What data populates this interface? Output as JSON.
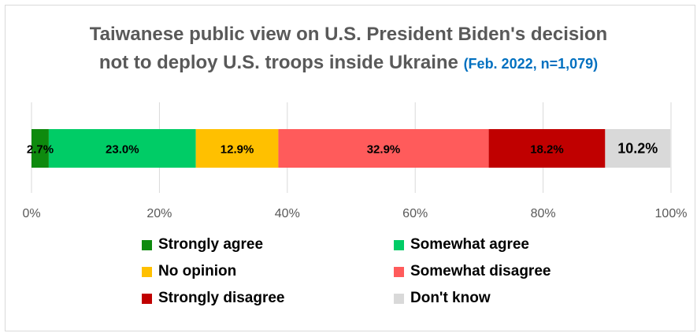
{
  "title": {
    "line1": "Taiwanese public view on U.S. President Biden's decision",
    "line2": "not to deploy U.S. troops inside Ukraine",
    "subtitle": "(Feb. 2022, n=1,079)",
    "color": "#595959",
    "subtitle_color": "#0070C0"
  },
  "chart_data": {
    "type": "bar",
    "orientation": "horizontal",
    "stacked": true,
    "categories": [
      ""
    ],
    "series": [
      {
        "name": "Strongly agree",
        "values": [
          2.7
        ],
        "label": "2.7%",
        "color": "#0E8A0E"
      },
      {
        "name": "Somewhat agree",
        "values": [
          23.0
        ],
        "label": "23.0%",
        "color": "#00CC66"
      },
      {
        "name": "No opinion",
        "values": [
          12.9
        ],
        "label": "12.9%",
        "color": "#FFC000"
      },
      {
        "name": "Somewhat disagree",
        "values": [
          32.9
        ],
        "label": "32.9%",
        "color": "#FF5B5B"
      },
      {
        "name": "Strongly disagree",
        "values": [
          18.2
        ],
        "label": "18.2%",
        "color": "#C00000"
      },
      {
        "name": "Don't know",
        "values": [
          10.2
        ],
        "label": "10.2%",
        "color": "#D9D9D9"
      }
    ],
    "xlim": [
      0,
      100
    ],
    "ticks": [
      0,
      20,
      40,
      60,
      80,
      100
    ],
    "tick_labels": [
      "0%",
      "20%",
      "40%",
      "60%",
      "80%",
      "100%"
    ],
    "grid": true,
    "legend_position": "bottom"
  }
}
